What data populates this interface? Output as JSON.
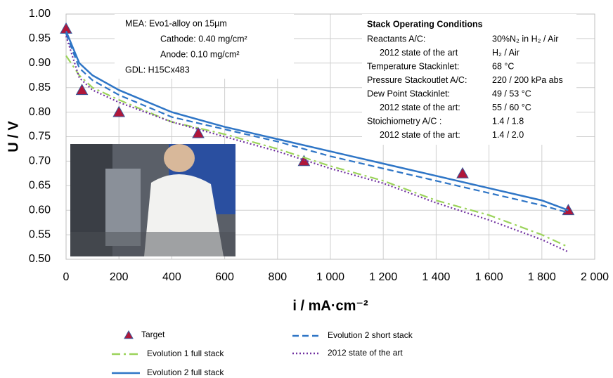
{
  "chart_data": {
    "type": "line",
    "x_label": "i / mA·cm⁻²",
    "y_label": "U / V",
    "xlim": [
      0,
      2000
    ],
    "ylim": [
      0.5,
      1.0
    ],
    "xticks": [
      0,
      200,
      400,
      600,
      800,
      {
        "value": 1000,
        "label": "1 000"
      },
      {
        "value": 1200,
        "label": "1 200"
      },
      {
        "value": 1400,
        "label": "1 400"
      },
      {
        "value": 1600,
        "label": "1 600"
      },
      {
        "value": 1800,
        "label": "1 800"
      },
      {
        "value": 2000,
        "label": "2 000"
      }
    ],
    "yticks": [
      {
        "value": 0.5,
        "label": "0.50"
      },
      0.55,
      {
        "value": 0.6,
        "label": "0.60"
      },
      0.65,
      {
        "value": 0.7,
        "label": "0.70"
      },
      0.75,
      {
        "value": 0.8,
        "label": "0.80"
      },
      0.85,
      {
        "value": 0.9,
        "label": "0.90"
      },
      0.95,
      {
        "value": 1.0,
        "label": "1.00"
      }
    ],
    "grid": true,
    "series": [
      {
        "name": "Target",
        "color": "#b0173a",
        "style": "triangle",
        "x": [
          0,
          60,
          200,
          500,
          900,
          1500,
          1900
        ],
        "values": [
          0.97,
          0.845,
          0.8,
          0.757,
          0.7,
          0.675,
          0.6
        ]
      },
      {
        "name": "Evolution 2 short stack",
        "color": "#2e75c6",
        "style": "dashed",
        "x": [
          0,
          50,
          100,
          200,
          400,
          600,
          800,
          1000,
          1200,
          1400,
          1600,
          1800,
          1900
        ],
        "values": [
          0.96,
          0.89,
          0.865,
          0.835,
          0.79,
          0.765,
          0.74,
          0.71,
          0.685,
          0.66,
          0.635,
          0.61,
          0.595
        ]
      },
      {
        "name": "Evolution 1 full stack",
        "color": "#9bd35a",
        "style": "dashdot",
        "x": [
          0,
          50,
          100,
          200,
          400,
          600,
          800,
          1000,
          1200,
          1400,
          1600,
          1800,
          1900
        ],
        "values": [
          0.915,
          0.875,
          0.85,
          0.825,
          0.78,
          0.755,
          0.725,
          0.69,
          0.66,
          0.62,
          0.59,
          0.55,
          0.525
        ]
      },
      {
        "name": "2012 state of the art",
        "color": "#7030a0",
        "style": "dotted",
        "x": [
          0,
          50,
          100,
          200,
          400,
          600,
          800,
          1000,
          1200,
          1400,
          1600,
          1800,
          1900
        ],
        "values": [
          0.955,
          0.87,
          0.845,
          0.82,
          0.78,
          0.75,
          0.72,
          0.685,
          0.655,
          0.615,
          0.58,
          0.54,
          0.515
        ]
      },
      {
        "name": "Evolution 2 full stack",
        "color": "#2e75c6",
        "style": "solid",
        "x": [
          0,
          50,
          100,
          200,
          400,
          600,
          800,
          1000,
          1200,
          1400,
          1600,
          1800,
          1900
        ],
        "values": [
          0.965,
          0.9,
          0.875,
          0.845,
          0.8,
          0.77,
          0.745,
          0.72,
          0.695,
          0.67,
          0.645,
          0.62,
          0.6
        ]
      }
    ],
    "mea_box": [
      "MEA: Evo1-alloy on 15µm",
      "Cathode: 0.40 mg/cm²",
      "Anode:    0.10 mg/cm²",
      "GDL: H15Cx483"
    ],
    "conditions_box": {
      "title": "Stack Operating Conditions",
      "rows": [
        [
          "Reactants A/C:",
          "30%N₂ in H₂ / Air"
        ],
        [
          "2012 state of the art",
          "H₂ / Air"
        ],
        [
          "Temperature Stackinlet:",
          "68 °C"
        ],
        [
          "Pressure Stackoutlet A/C:",
          "220 / 200 kPa abs"
        ],
        [
          "Dew Point Stackinlet:",
          "49 / 53 °C"
        ],
        [
          "2012 state of the art:",
          "55 / 60 °C"
        ],
        [
          "Stoichiometry A/C :",
          "1.4 / 1.8"
        ],
        [
          "2012 state of the art:",
          "1.4 / 2.0"
        ]
      ]
    }
  }
}
